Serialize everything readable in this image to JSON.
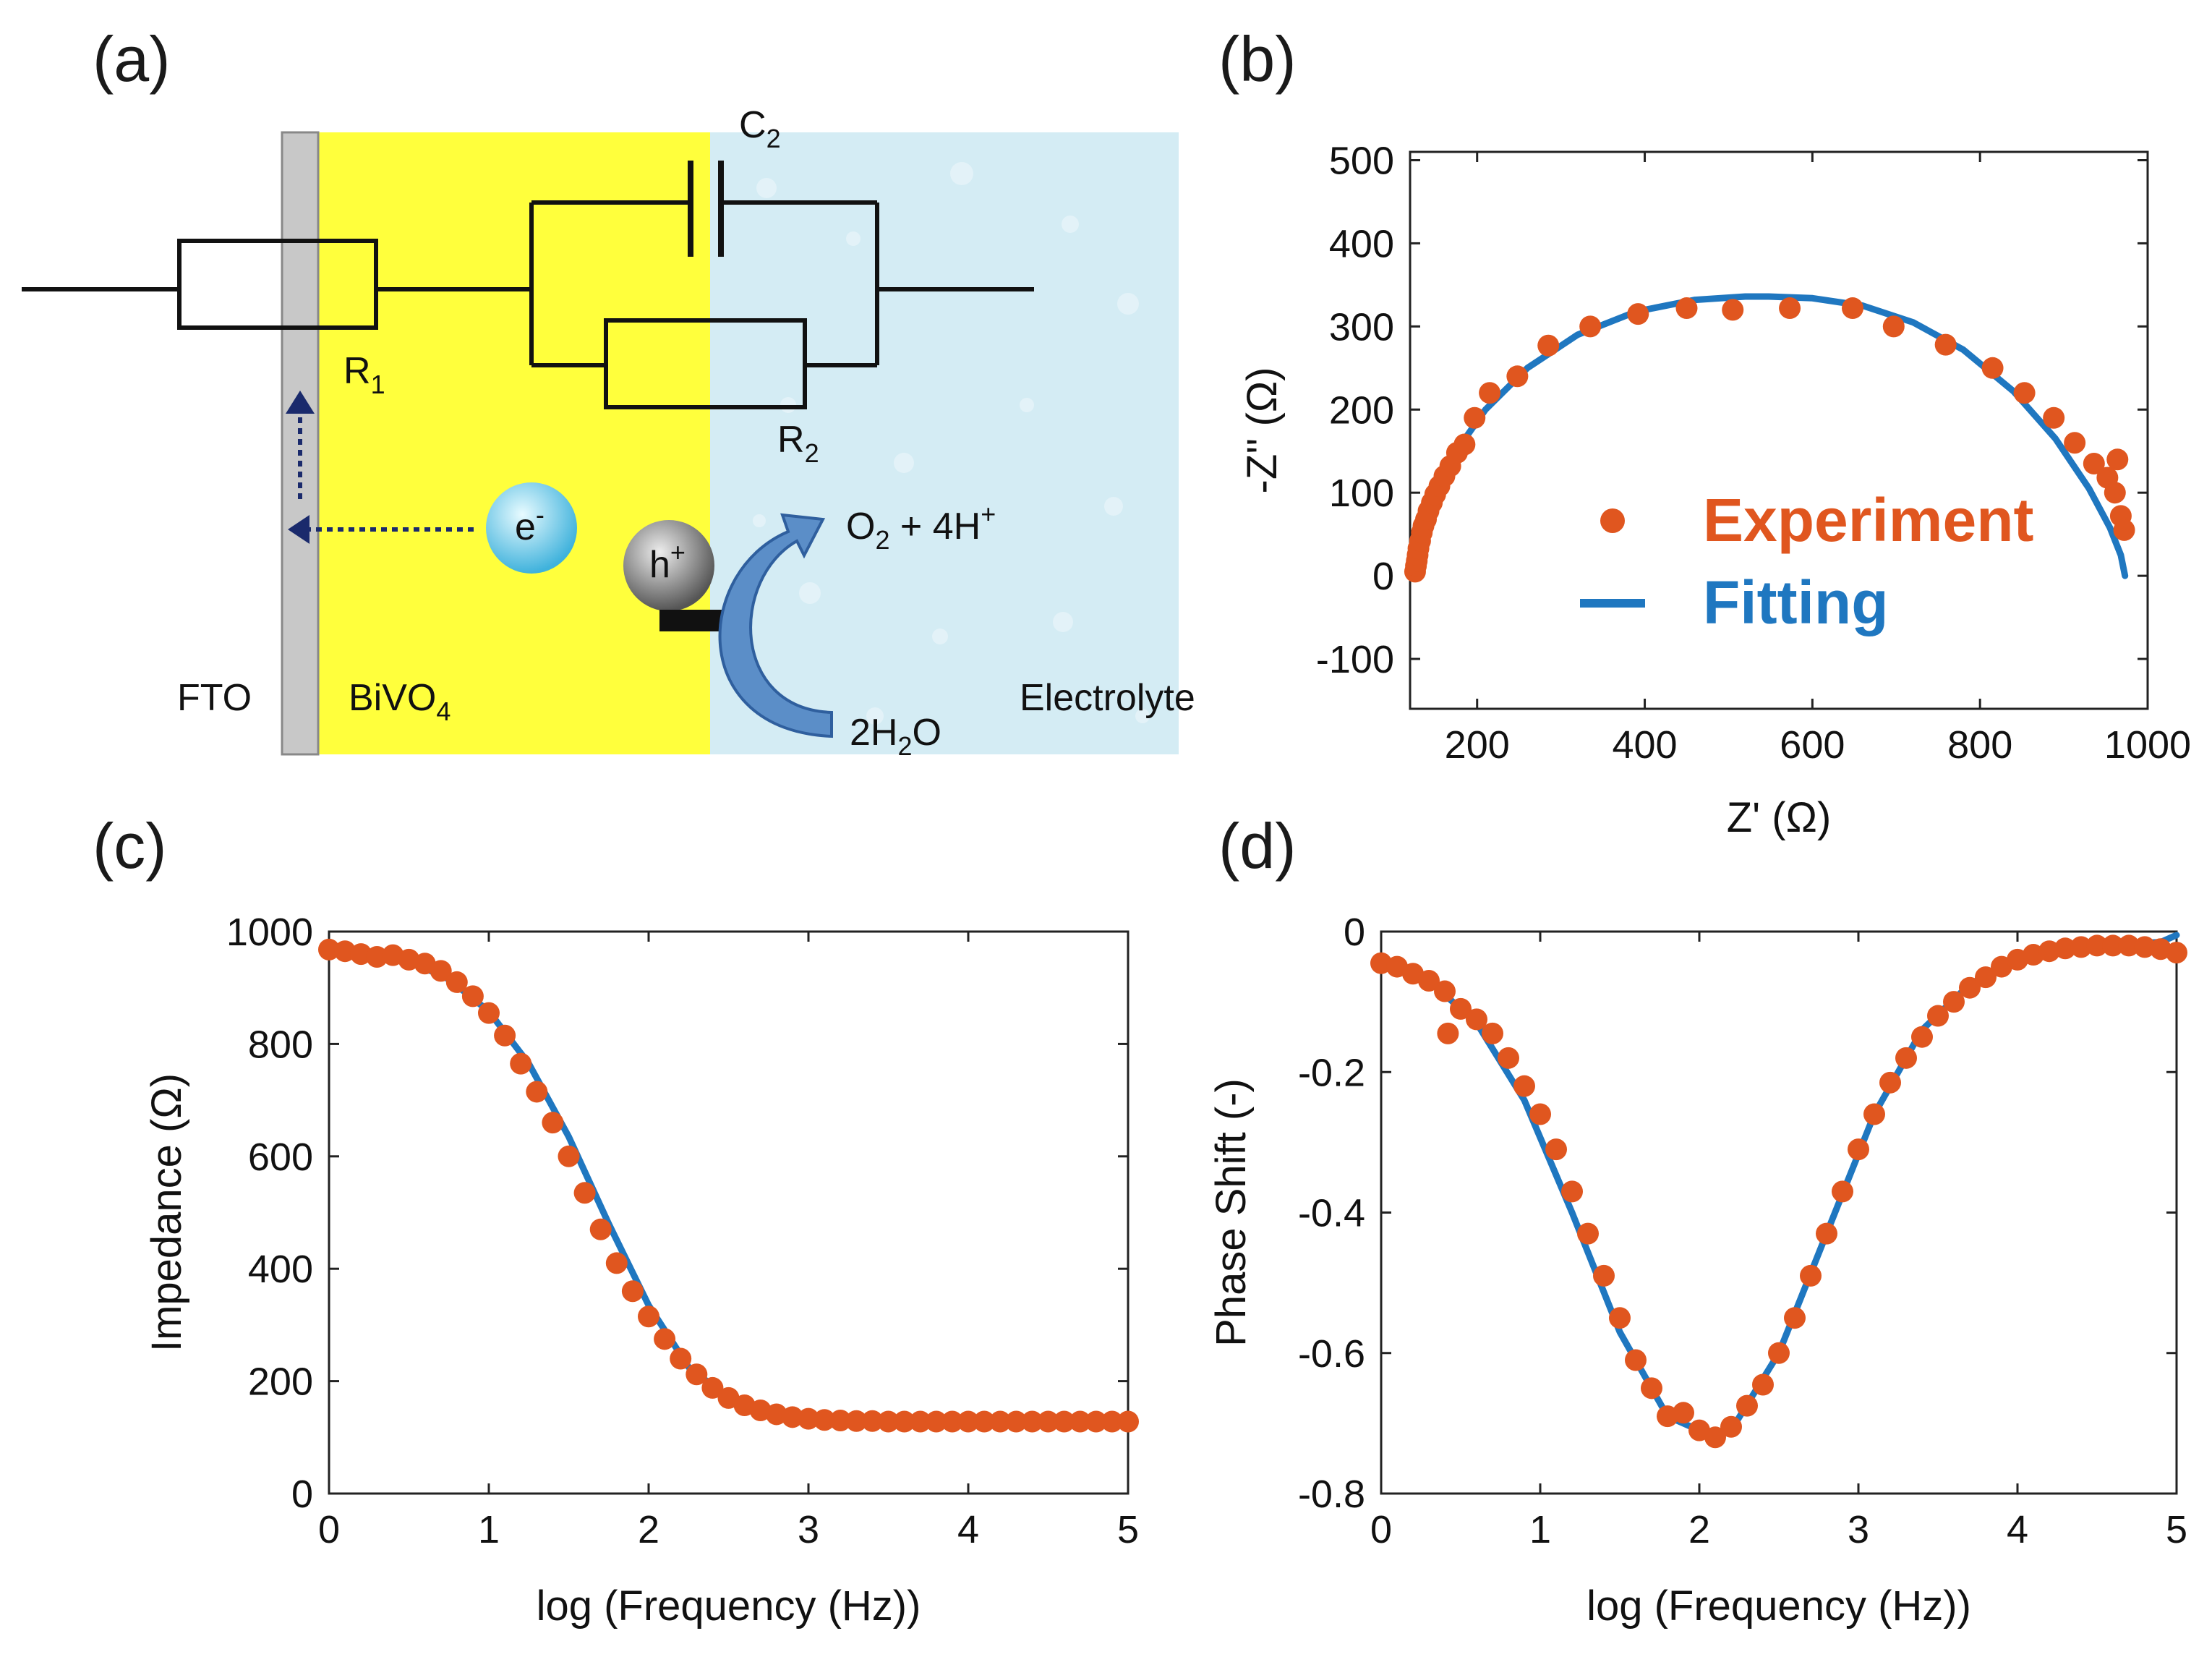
{
  "colors": {
    "experiment": "#e0561f",
    "fitting": "#1f77c0",
    "fto": "#c8c8c8",
    "bivo4": "#ffff3c",
    "electrolyte": "#d4ecf4",
    "arrow": "#5b8ec8",
    "electron": "#5fc4e6",
    "hole": "#777777"
  },
  "panel_a": {
    "label": "(a)",
    "c2": "C",
    "c2_sub": "2",
    "r1": "R",
    "r1_sub": "1",
    "r2": "R",
    "r2_sub": "2",
    "electron": "e",
    "electron_sup": "-",
    "hole": "h",
    "hole_sup": "+",
    "o2": "O",
    "o2_sub": "2",
    "o2_rest": " + 4H",
    "o2_sup": "+",
    "water_pre": "2H",
    "water_sub": "2",
    "water_post": "O",
    "fto": "FTO",
    "bivo4": "BiVO",
    "bivo4_sub": "4",
    "electrolyte": "Electrolyte"
  },
  "chart_data": [
    {
      "id": "b",
      "label": "(b)",
      "type": "scatter",
      "xlabel": "Z' (Ω)",
      "ylabel": "-Z'' (Ω)",
      "xlim": [
        120,
        1000
      ],
      "ylim": [
        -160,
        510
      ],
      "xticks": [
        200,
        400,
        600,
        800,
        1000
      ],
      "yticks": [
        -100,
        0,
        100,
        200,
        300,
        400,
        500
      ],
      "legend": [
        "Experiment",
        "Fitting"
      ],
      "legend_position": "bottom-right",
      "series": [
        {
          "name": "Experiment",
          "kind": "points",
          "x": [
            126,
            127,
            128,
            129,
            130,
            132,
            134,
            136,
            139,
            142,
            146,
            150,
            155,
            161,
            168,
            176,
            185,
            197,
            215,
            248,
            285,
            335,
            392,
            450,
            505,
            573,
            648,
            697,
            759,
            815,
            853,
            888,
            913,
            936,
            952,
            961,
            964,
            968,
            972
          ],
          "y": [
            5,
            12,
            18,
            25,
            33,
            42,
            52,
            60,
            68,
            78,
            88,
            98,
            108,
            120,
            132,
            148,
            158,
            190,
            220,
            240,
            277,
            300,
            315,
            322,
            320,
            322,
            322,
            300,
            278,
            250,
            220,
            190,
            160,
            135,
            118,
            100,
            140,
            72,
            55
          ]
        },
        {
          "name": "Fitting",
          "kind": "line",
          "x": [
            125,
            135,
            150,
            175,
            210,
            260,
            320,
            390,
            460,
            520,
            548,
            600,
            660,
            720,
            780,
            840,
            890,
            930,
            955,
            968,
            973
          ],
          "y": [
            0,
            57,
            99,
            150,
            200,
            250,
            290,
            318,
            332,
            336,
            336,
            334,
            325,
            305,
            272,
            222,
            165,
            105,
            58,
            25,
            0
          ]
        }
      ]
    },
    {
      "id": "c",
      "label": "(c)",
      "type": "scatter",
      "xlabel": "log (Frequency (Hz))",
      "ylabel": "Impedance (Ω)",
      "xlim": [
        0,
        5
      ],
      "ylim": [
        0,
        1000
      ],
      "xticks": [
        0,
        1,
        2,
        3,
        4,
        5
      ],
      "yticks": [
        0,
        200,
        400,
        600,
        800,
        1000
      ],
      "series": [
        {
          "name": "Experiment",
          "kind": "points",
          "x": [
            0.0,
            0.1,
            0.2,
            0.3,
            0.4,
            0.5,
            0.6,
            0.7,
            0.8,
            0.9,
            1.0,
            1.1,
            1.2,
            1.3,
            1.4,
            1.5,
            1.6,
            1.7,
            1.8,
            1.9,
            2.0,
            2.1,
            2.2,
            2.3,
            2.4,
            2.5,
            2.6,
            2.7,
            2.8,
            2.9,
            3.0,
            3.1,
            3.2,
            3.3,
            3.4,
            3.5,
            3.6,
            3.7,
            3.8,
            3.9,
            4.0,
            4.1,
            4.2,
            4.3,
            4.4,
            4.5,
            4.6,
            4.7,
            4.8,
            4.9,
            5.0
          ],
          "y": [
            968,
            965,
            960,
            955,
            958,
            950,
            943,
            930,
            910,
            885,
            855,
            815,
            765,
            715,
            660,
            600,
            535,
            470,
            410,
            360,
            315,
            275,
            240,
            212,
            188,
            170,
            157,
            148,
            141,
            136,
            133,
            131,
            130,
            129,
            129,
            128,
            128,
            128,
            128,
            128,
            128,
            128,
            128,
            128,
            128,
            128,
            128,
            128,
            128,
            128,
            128
          ]
        },
        {
          "name": "Fitting",
          "kind": "line",
          "x": [
            0.0,
            0.25,
            0.5,
            0.75,
            1.0,
            1.25,
            1.5,
            1.75,
            2.0,
            2.25,
            2.5,
            2.75,
            3.0,
            3.5,
            4.0,
            5.0
          ],
          "y": [
            968,
            962,
            948,
            915,
            858,
            765,
            635,
            480,
            335,
            225,
            170,
            145,
            136,
            130,
            128,
            128
          ]
        }
      ]
    },
    {
      "id": "d",
      "label": "(d)",
      "type": "scatter",
      "xlabel": "log (Frequency (Hz))",
      "ylabel": "Phase Shift (-)",
      "xlim": [
        0,
        5
      ],
      "ylim": [
        -0.8,
        0
      ],
      "xticks": [
        0,
        1,
        2,
        3,
        4,
        5
      ],
      "yticks": [
        0,
        -0.2,
        -0.4,
        -0.6,
        -0.8
      ],
      "ytick_labels": [
        "0",
        "-0.2",
        "-0.4",
        "-0.6",
        "-0.8"
      ],
      "series": [
        {
          "name": "Experiment",
          "kind": "points",
          "x": [
            0.0,
            0.1,
            0.2,
            0.3,
            0.4,
            0.42,
            0.5,
            0.6,
            0.7,
            0.8,
            0.9,
            1.0,
            1.1,
            1.2,
            1.3,
            1.4,
            1.5,
            1.6,
            1.7,
            1.8,
            1.9,
            2.0,
            2.1,
            2.2,
            2.3,
            2.4,
            2.5,
            2.6,
            2.7,
            2.8,
            2.9,
            3.0,
            3.1,
            3.2,
            3.3,
            3.4,
            3.5,
            3.6,
            3.7,
            3.8,
            3.9,
            4.0,
            4.1,
            4.2,
            4.3,
            4.4,
            4.5,
            4.6,
            4.7,
            4.8,
            4.9,
            5.0
          ],
          "y": [
            -0.045,
            -0.05,
            -0.06,
            -0.07,
            -0.085,
            -0.145,
            -0.11,
            -0.125,
            -0.145,
            -0.18,
            -0.22,
            -0.26,
            -0.31,
            -0.37,
            -0.43,
            -0.49,
            -0.55,
            -0.61,
            -0.65,
            -0.69,
            -0.685,
            -0.71,
            -0.72,
            -0.705,
            -0.675,
            -0.645,
            -0.6,
            -0.55,
            -0.49,
            -0.43,
            -0.37,
            -0.31,
            -0.26,
            -0.215,
            -0.18,
            -0.15,
            -0.12,
            -0.1,
            -0.08,
            -0.065,
            -0.05,
            -0.04,
            -0.033,
            -0.028,
            -0.024,
            -0.022,
            -0.02,
            -0.02,
            -0.02,
            -0.022,
            -0.025,
            -0.03
          ]
        },
        {
          "name": "Fitting",
          "kind": "line",
          "x": [
            0.0,
            0.3,
            0.6,
            0.9,
            1.2,
            1.5,
            1.8,
            2.0,
            2.1,
            2.2,
            2.5,
            2.8,
            3.1,
            3.4,
            3.7,
            4.0,
            4.3,
            4.6,
            4.9,
            5.0
          ],
          "y": [
            -0.045,
            -0.07,
            -0.13,
            -0.24,
            -0.4,
            -0.57,
            -0.69,
            -0.71,
            -0.715,
            -0.71,
            -0.6,
            -0.43,
            -0.26,
            -0.14,
            -0.075,
            -0.04,
            -0.025,
            -0.018,
            -0.015,
            -0.005
          ]
        }
      ]
    }
  ]
}
